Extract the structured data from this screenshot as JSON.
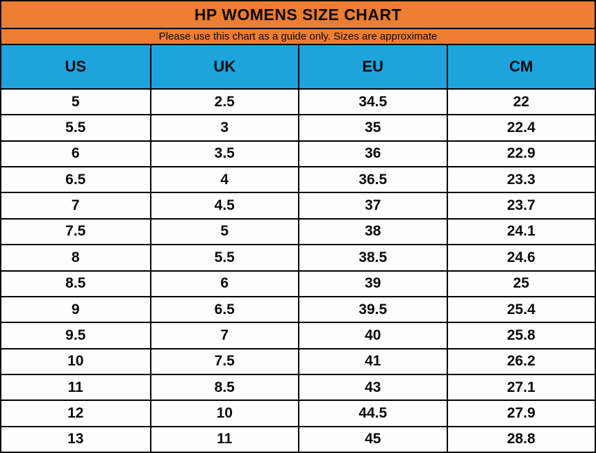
{
  "title": "HP WOMENS SIZE CHART",
  "subtitle": "Please use this chart as a guide only. Sizes are approximate",
  "colors": {
    "banner_orange": "#ED7D31",
    "header_blue": "#1EA4DC",
    "border_black": "#000000",
    "text_black": "#0A0A0A",
    "row_background": "#FEFEFE"
  },
  "chart_data": {
    "type": "table",
    "title": "HP WOMENS SIZE CHART",
    "subtitle": "Please use this chart as a guide only. Sizes are approximate",
    "columns": [
      "US",
      "UK",
      "EU",
      "CM"
    ],
    "rows": [
      [
        "5",
        "2.5",
        "34.5",
        "22"
      ],
      [
        "5.5",
        "3",
        "35",
        "22.4"
      ],
      [
        "6",
        "3.5",
        "36",
        "22.9"
      ],
      [
        "6.5",
        "4",
        "36.5",
        "23.3"
      ],
      [
        "7",
        "4.5",
        "37",
        "23.7"
      ],
      [
        "7.5",
        "5",
        "38",
        "24.1"
      ],
      [
        "8",
        "5.5",
        "38.5",
        "24.6"
      ],
      [
        "8.5",
        "6",
        "39",
        "25"
      ],
      [
        "9",
        "6.5",
        "39.5",
        "25.4"
      ],
      [
        "9.5",
        "7",
        "40",
        "25.8"
      ],
      [
        "10",
        "7.5",
        "41",
        "26.2"
      ],
      [
        "11",
        "8.5",
        "43",
        "27.1"
      ],
      [
        "12",
        "10",
        "44.5",
        "27.9"
      ],
      [
        "13",
        "11",
        "45",
        "28.8"
      ]
    ]
  }
}
